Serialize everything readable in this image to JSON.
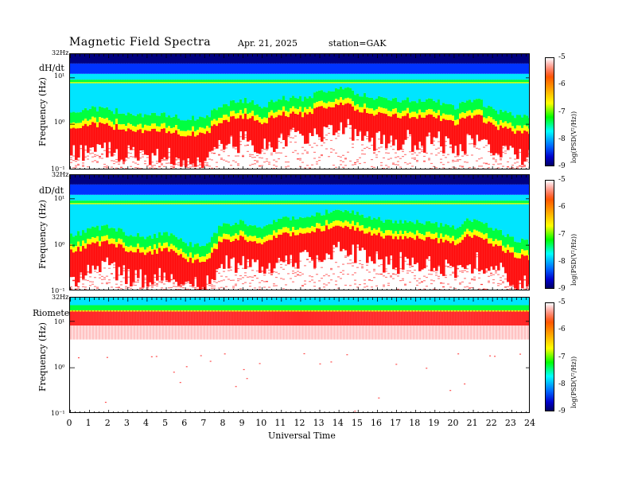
{
  "header": {
    "title": "Magnetic  Field  Spectra",
    "date": "Apr. 21, 2025",
    "station": "station=GAK"
  },
  "chart_data": {
    "type": "heatmap",
    "title": "Magnetic  Field  Spectra",
    "xlabel": "Universal  Time",
    "x_ticks": [
      "0",
      "1",
      "2",
      "3",
      "4",
      "5",
      "6",
      "7",
      "8",
      "9",
      "10",
      "11",
      "12",
      "13",
      "14",
      "15",
      "16",
      "17",
      "18",
      "19",
      "20",
      "21",
      "22",
      "23",
      "24"
    ],
    "xlim": [
      0,
      24
    ],
    "ylim_hz": [
      0.1,
      32
    ],
    "y_scale": "log",
    "panels": [
      {
        "name": "dH/dt",
        "ylabel": "Frequency  (Hz)",
        "y_ticks": [
          "32Hz",
          "10¹",
          "10⁰",
          "10⁻¹"
        ],
        "colorbar_label": "log(PSD(V²/Hz))",
        "colorbar_ticks": [
          "-5",
          "-6",
          "-7",
          "-8",
          "-9"
        ],
        "red_edge_hz_by_hour": [
          0.8,
          1.0,
          0.9,
          0.8,
          0.7,
          0.7,
          0.6,
          0.6,
          1.2,
          1.5,
          1.1,
          1.6,
          1.6,
          2.2,
          2.8,
          2.0,
          1.6,
          1.5,
          1.5,
          1.4,
          1.0,
          1.6,
          0.9,
          0.7,
          0.6
        ]
      },
      {
        "name": "dD/dt",
        "ylabel": "Frequency  (Hz)",
        "y_ticks": [
          "32Hz",
          "10¹",
          "10⁰",
          "10⁻¹"
        ],
        "colorbar_label": "log(PSD(V²/Hz))",
        "colorbar_ticks": [
          "-5",
          "-6",
          "-7",
          "-8",
          "-9"
        ],
        "red_edge_hz_by_hour": [
          0.7,
          1.0,
          1.1,
          0.8,
          0.7,
          0.8,
          0.5,
          0.4,
          1.3,
          1.4,
          1.1,
          1.6,
          1.7,
          2.2,
          2.7,
          2.0,
          1.6,
          1.5,
          1.4,
          1.3,
          1.1,
          1.7,
          1.0,
          0.6,
          0.5
        ]
      },
      {
        "name": "Riometer",
        "ylabel": "Frequency  (Hz)",
        "y_ticks": [
          "32Hz",
          "10¹",
          "10⁰",
          "10⁻¹"
        ],
        "colorbar_label": "log(PSD(V²/Hz))",
        "colorbar_ticks": [
          "-5",
          "-6",
          "-7",
          "-8",
          "-9"
        ],
        "red_band_hz": [
          8,
          16
        ]
      }
    ]
  },
  "colors": {
    "dark_blue": "#000080",
    "blue": "#0033ff",
    "cyan": "#00e5ff",
    "green": "#00ff40",
    "yellow": "#ffff00",
    "red": "#ff0000",
    "white": "#ffffff"
  }
}
